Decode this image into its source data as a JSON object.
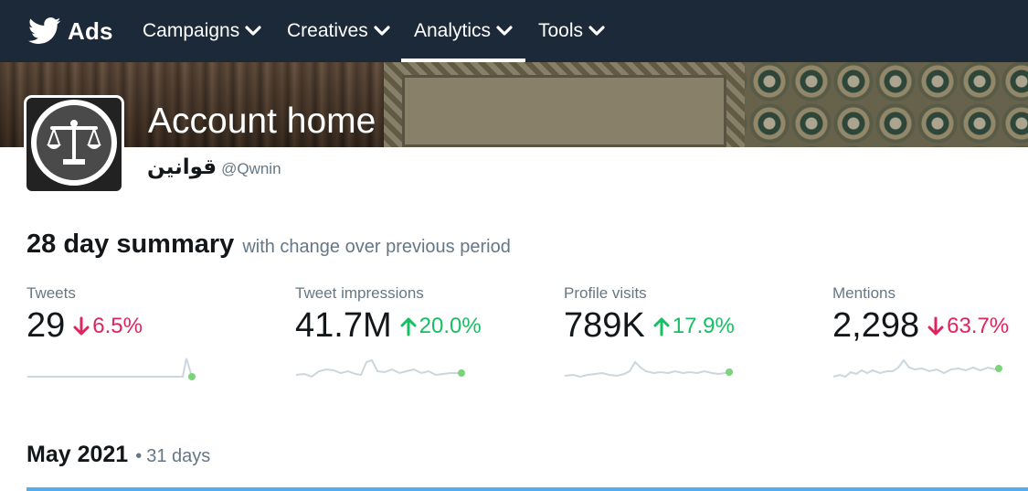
{
  "nav": {
    "brand_label": "Ads",
    "items": [
      {
        "label": "Campaigns",
        "active": false
      },
      {
        "label": "Creatives",
        "active": false
      },
      {
        "label": "Analytics",
        "active": true
      },
      {
        "label": "Tools",
        "active": false
      }
    ]
  },
  "header": {
    "title": "Account home",
    "account_name": "قوانين",
    "account_handle": "@Qwnin",
    "avatar_icon": "scales-of-justice-icon"
  },
  "summary": {
    "title": "28 day summary",
    "subtitle": "with change over previous period",
    "metrics": [
      {
        "label": "Tweets",
        "value": "29",
        "change": "6.5%",
        "direction": "down"
      },
      {
        "label": "Tweet impressions",
        "value": "41.7M",
        "change": "20.0%",
        "direction": "up"
      },
      {
        "label": "Profile visits",
        "value": "789K",
        "change": "17.9%",
        "direction": "up"
      },
      {
        "label": "Mentions",
        "value": "2,298",
        "change": "63.7%",
        "direction": "down"
      }
    ]
  },
  "period": {
    "title": "May 2021",
    "separator": "•",
    "days": "31 days"
  },
  "colors": {
    "nav_background": "#1c2938",
    "positive": "#17bf63",
    "negative": "#e0245e",
    "accent_rule": "#55acee",
    "sparkline": "#ccd6dd",
    "sparkline_end": "#7bd37a"
  }
}
